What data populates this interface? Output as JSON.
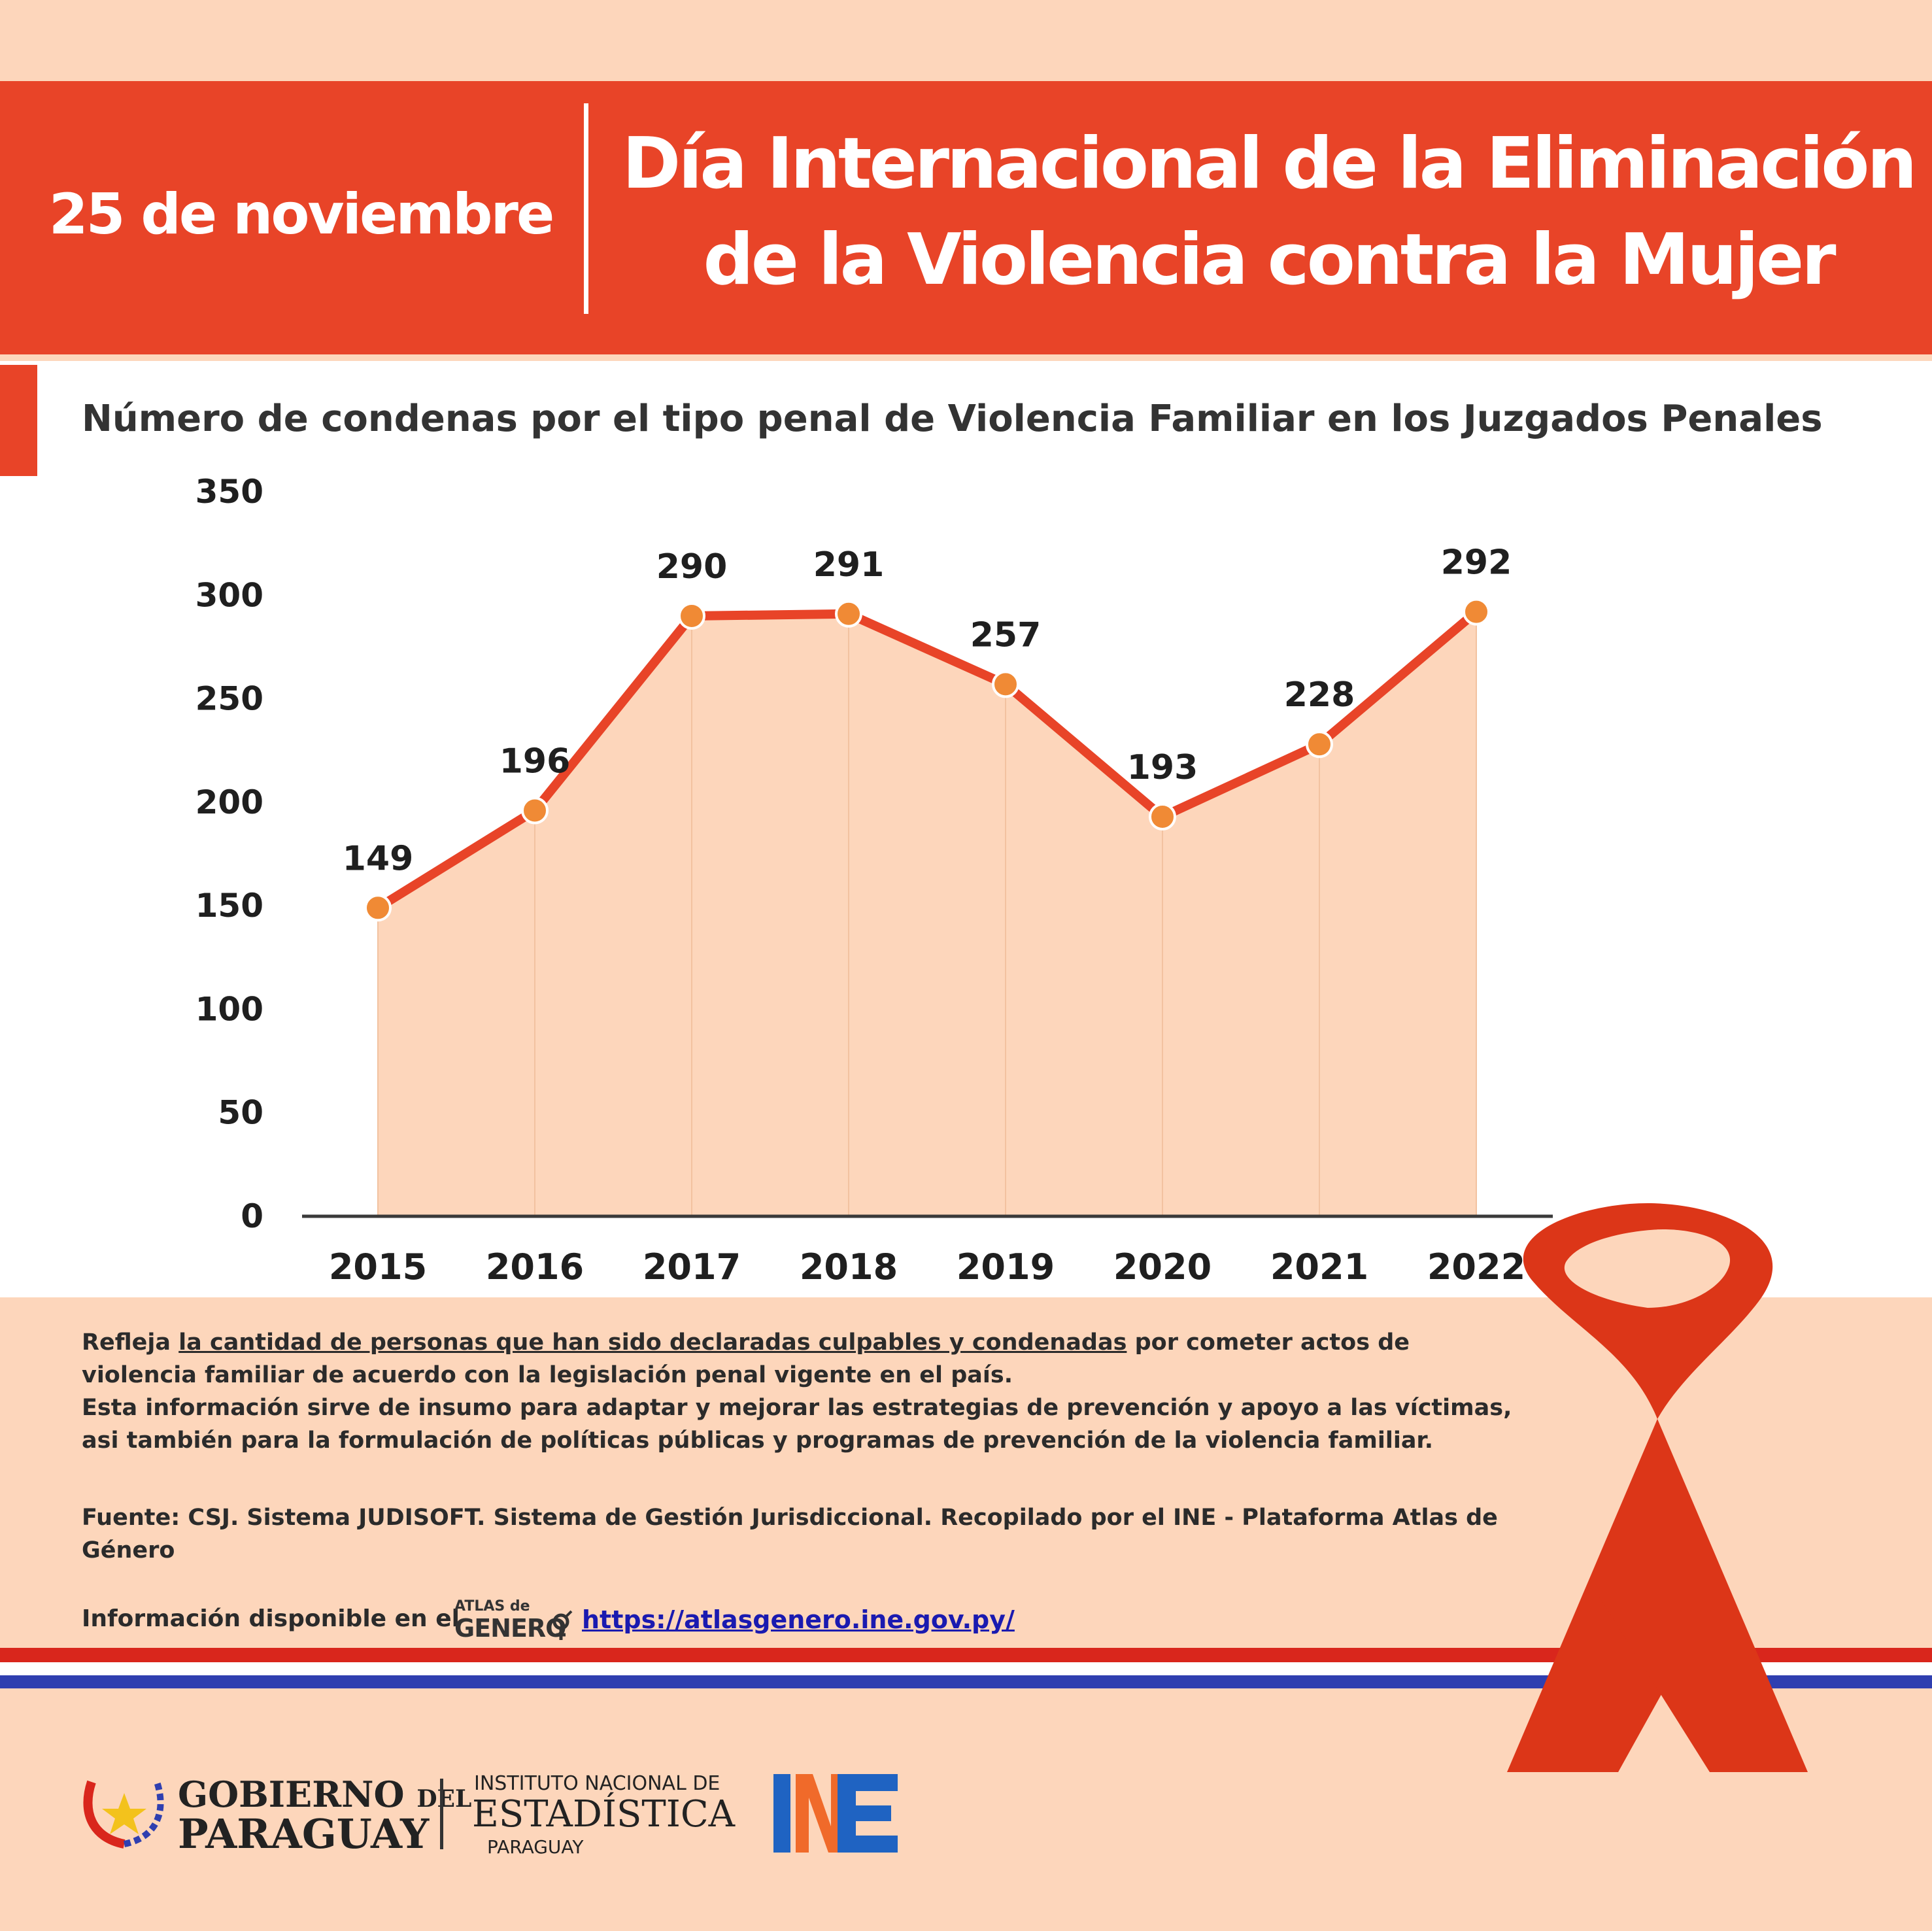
{
  "header": {
    "date": "25 de noviembre",
    "title_line1": "Día Internacional de la Eliminación",
    "title_line2": "de la Violencia contra la Mujer"
  },
  "colors": {
    "header": "#e84428",
    "background": "#fdd6bb",
    "line": "#e84428",
    "area": "#fdd6bb",
    "marker": "#f08a35",
    "ribbon": "#dc3618",
    "stripe_red": "#d9261c",
    "stripe_blue": "#2f3fb0"
  },
  "chart_data": {
    "type": "area",
    "title": "Número de condenas por el tipo penal de Violencia Familiar en los Juzgados Penales",
    "x": [
      "2015",
      "2016",
      "2017",
      "2018",
      "2019",
      "2020",
      "2021",
      "2022"
    ],
    "values": [
      149,
      196,
      290,
      291,
      257,
      193,
      228,
      292
    ],
    "yticks": [
      0,
      50,
      100,
      150,
      200,
      250,
      300,
      350
    ],
    "ylim": [
      0,
      350
    ],
    "xlabel": "",
    "ylabel": "",
    "grid": false,
    "legend": "none",
    "data_labels": true
  },
  "description": {
    "p1_before": "Refleja ",
    "p1_underlined": "la cantidad de personas que han sido declaradas culpables y condenadas",
    "p1_after": " por cometer actos de violencia familiar de acuerdo con la legislación penal vigente en el país.",
    "p2": "Esta información sirve de insumo para adaptar y mejorar las estrategias de prevención y apoyo a las víctimas, asi también para la formulación de políticas públicas y programas de prevención de la violencia familiar."
  },
  "source": "Fuente: CSJ. Sistema JUDISOFT. Sistema de Gestión Jurisdiccional. Recopilado por el INE - Plataforma Atlas de Género",
  "availability": {
    "text": "Información disponible en el",
    "atlas_small": "ATLAS de",
    "atlas_big": "GENERO",
    "url": "https://atlasgenero.ine.gov.py/"
  },
  "logos": {
    "gov_line1": "GOBIERNO",
    "gov_del": "DEL",
    "gov_line2": "PARAGUAY",
    "ine_line1": "INSTITUTO NACIONAL DE",
    "ine_line2": "ESTADÍSTICA",
    "ine_line3": "PARAGUAY",
    "ine_mark": "INE"
  }
}
